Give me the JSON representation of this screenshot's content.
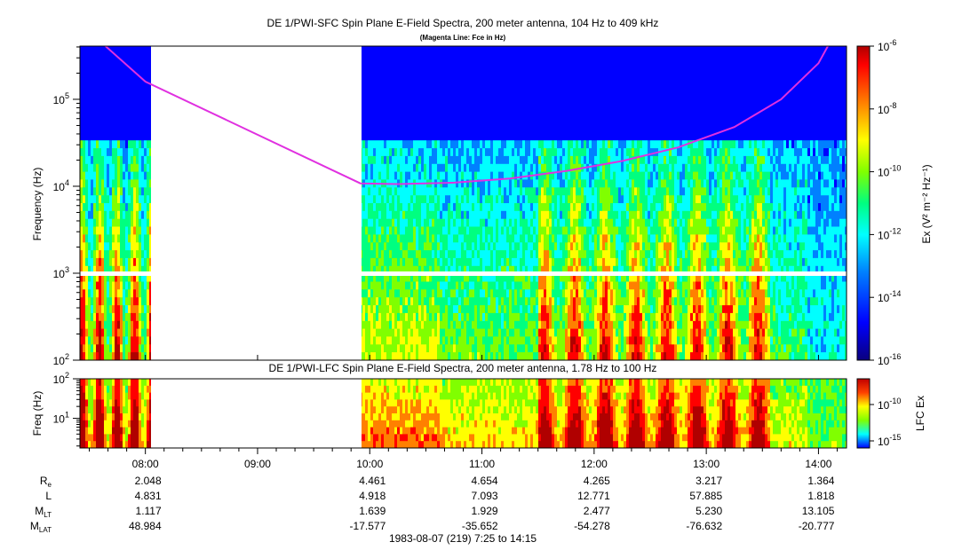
{
  "header": {
    "title": "DE 1/PWI-SFC  Spin Plane E-Field Spectra, 200 meter antenna, 104 Hz to 409 kHz",
    "subtitle": "(Magenta Line: Fce in Hz)"
  },
  "colors": {
    "background": "#ffffff",
    "fce_line": "#e030e0",
    "colormap": [
      "#0a007e",
      "#0000ff",
      "#0080ff",
      "#00ffff",
      "#00ff80",
      "#80ff00",
      "#ffff00",
      "#ff8000",
      "#ff0000",
      "#b00000"
    ]
  },
  "chart_data": [
    {
      "type": "heatmap",
      "title": "DE 1/PWI-SFC  Spin Plane E-Field Spectra, 200 meter antenna, 104 Hz to 409 kHz",
      "subtitle": "(Magenta Line: Fce in Hz)",
      "ylabel": "Frequency (Hz)",
      "y_scale": "log",
      "ylim": [
        100,
        409000
      ],
      "y_ticks": [
        100,
        1000,
        10000,
        100000
      ],
      "y_tick_labels": [
        {
          "base": "10",
          "exp": "2"
        },
        {
          "base": "10",
          "exp": "3"
        },
        {
          "base": "10",
          "exp": "4"
        },
        {
          "base": "10",
          "exp": "5"
        }
      ],
      "x_range": [
        "07:25",
        "14:15"
      ],
      "data_gap": [
        "08:02",
        "09:55"
      ],
      "fce_line_hz": [
        {
          "t": "07:30",
          "f": 600000
        },
        {
          "t": "08:00",
          "f": 160000
        },
        {
          "t": "09:55",
          "f": 10800
        },
        {
          "t": "10:15",
          "f": 10600
        },
        {
          "t": "10:45",
          "f": 11000
        },
        {
          "t": "11:15",
          "f": 12300
        },
        {
          "t": "11:45",
          "f": 15000
        },
        {
          "t": "12:15",
          "f": 19500
        },
        {
          "t": "12:45",
          "f": 28000
        },
        {
          "t": "13:15",
          "f": 48000
        },
        {
          "t": "13:40",
          "f": 100000
        },
        {
          "t": "14:00",
          "f": 260000
        },
        {
          "t": "14:05",
          "f": 409000
        }
      ],
      "colorbar": {
        "label": "Ex (V² m⁻² Hz⁻¹)",
        "range": [
          1e-16,
          1e-06
        ],
        "ticks": [
          {
            "base": "10",
            "exp": "-6"
          },
          {
            "base": "10",
            "exp": "-8"
          },
          {
            "base": "10",
            "exp": "-10"
          },
          {
            "base": "10",
            "exp": "-12"
          },
          {
            "base": "10",
            "exp": "-14"
          },
          {
            "base": "10",
            "exp": "-16"
          }
        ]
      }
    },
    {
      "type": "heatmap",
      "title": "DE 1/PWI-LFC  Spin Plane E-Field Spectra, 200 meter antenna, 1.78 Hz to 100 Hz",
      "ylabel": "Freq (Hz)",
      "y_scale": "log",
      "ylim": [
        1.78,
        100
      ],
      "y_ticks": [
        10,
        100
      ],
      "y_tick_labels": [
        {
          "base": "10",
          "exp": "1"
        },
        {
          "base": "10",
          "exp": "2"
        }
      ],
      "x_range": [
        "07:25",
        "14:15"
      ],
      "data_gap": [
        "08:02",
        "09:55"
      ],
      "colorbar": {
        "label": "LFC Ex",
        "ticks": [
          {
            "base": "10",
            "exp": "-10"
          },
          {
            "base": "10",
            "exp": "-15"
          }
        ]
      }
    }
  ],
  "x_axis": {
    "ticks": [
      "08:00",
      "09:00",
      "10:00",
      "11:00",
      "12:00",
      "13:00",
      "14:00"
    ],
    "ephemeris": [
      {
        "label": "R",
        "sub": "e",
        "values": [
          "2.048",
          "",
          "4.461",
          "4.654",
          "4.265",
          "3.217",
          "1.364"
        ]
      },
      {
        "label": "L",
        "sub": "",
        "values": [
          "4.831",
          "",
          "4.918",
          "7.093",
          "12.771",
          "57.885",
          "1.818"
        ]
      },
      {
        "label": "M",
        "sub": "LT",
        "values": [
          "1.117",
          "",
          "1.639",
          "1.929",
          "2.477",
          "5.230",
          "13.105"
        ]
      },
      {
        "label": "M",
        "sub": "LAT",
        "values": [
          "48.984",
          "",
          "-17.577",
          "-35.652",
          "-54.278",
          "-76.632",
          "-20.777"
        ]
      }
    ],
    "footer": "1983-08-07 (219) 7:25 to 14:15"
  }
}
